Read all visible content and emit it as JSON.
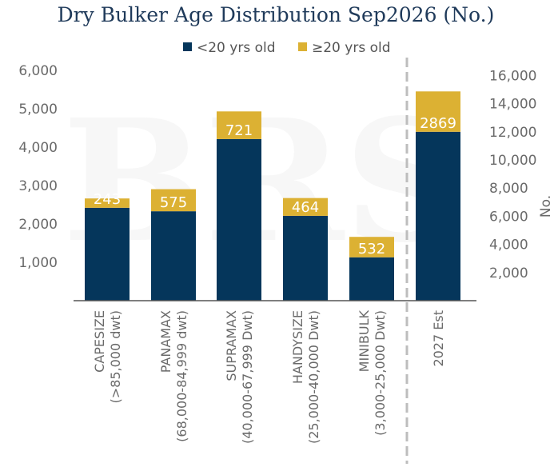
{
  "colors": {
    "lt20": "#05365b",
    "ge20": "#dcb133",
    "axis": "#555555",
    "divider": "#bdbdbd",
    "title": "#1f3a5a"
  },
  "watermark_text": "BRS",
  "chart_data": {
    "type": "bar",
    "stacked": true,
    "title": "Dry Bulker Age Distribution Sep2026 (No.)",
    "legend_position": "top",
    "grid": false,
    "categories": [
      [
        "CAPESIZE",
        "(>85,000 dwt)"
      ],
      [
        "PANAMAX",
        "(68,000-84,999 dwt)"
      ],
      [
        "SUPRAMAX",
        "(40,000-67,999 Dwt)"
      ],
      [
        "HANDYSIZE",
        "(25,000-40,000 Dwt)"
      ],
      [
        "MINIBULK",
        "(3,000-25,000 Dwt)"
      ],
      [
        "2027 Est"
      ]
    ],
    "series": [
      {
        "name": "<20 yrs old",
        "color_key": "lt20",
        "values": [
          2420,
          2330,
          4210,
          2210,
          1130,
          12000
        ]
      },
      {
        "name": "≥20 yrs old",
        "color_key": "ge20",
        "values": [
          243,
          575,
          721,
          464,
          532,
          2869
        ]
      }
    ],
    "data_labels": [
      "243",
      "575",
      "721",
      "464",
      "532",
      "2869"
    ],
    "left_axis": {
      "ylim": [
        0,
        6000
      ],
      "ticks": [
        1000,
        2000,
        3000,
        4000,
        5000,
        6000
      ],
      "tick_labels": [
        "1,000",
        "2,000",
        "3,000",
        "4,000",
        "5,000",
        "6,000"
      ],
      "applies_to_categories": [
        0,
        1,
        2,
        3,
        4
      ]
    },
    "right_axis": {
      "label": "No.",
      "ylim": [
        0,
        16000
      ],
      "ticks": [
        2000,
        4000,
        6000,
        8000,
        10000,
        12000,
        14000,
        16000
      ],
      "tick_labels": [
        "2,000",
        "4,000",
        "6,000",
        "8,000",
        "10,000",
        "12,000",
        "14,000",
        "16,000"
      ],
      "applies_to_categories": [
        5
      ]
    },
    "divider_before_category": 5
  }
}
